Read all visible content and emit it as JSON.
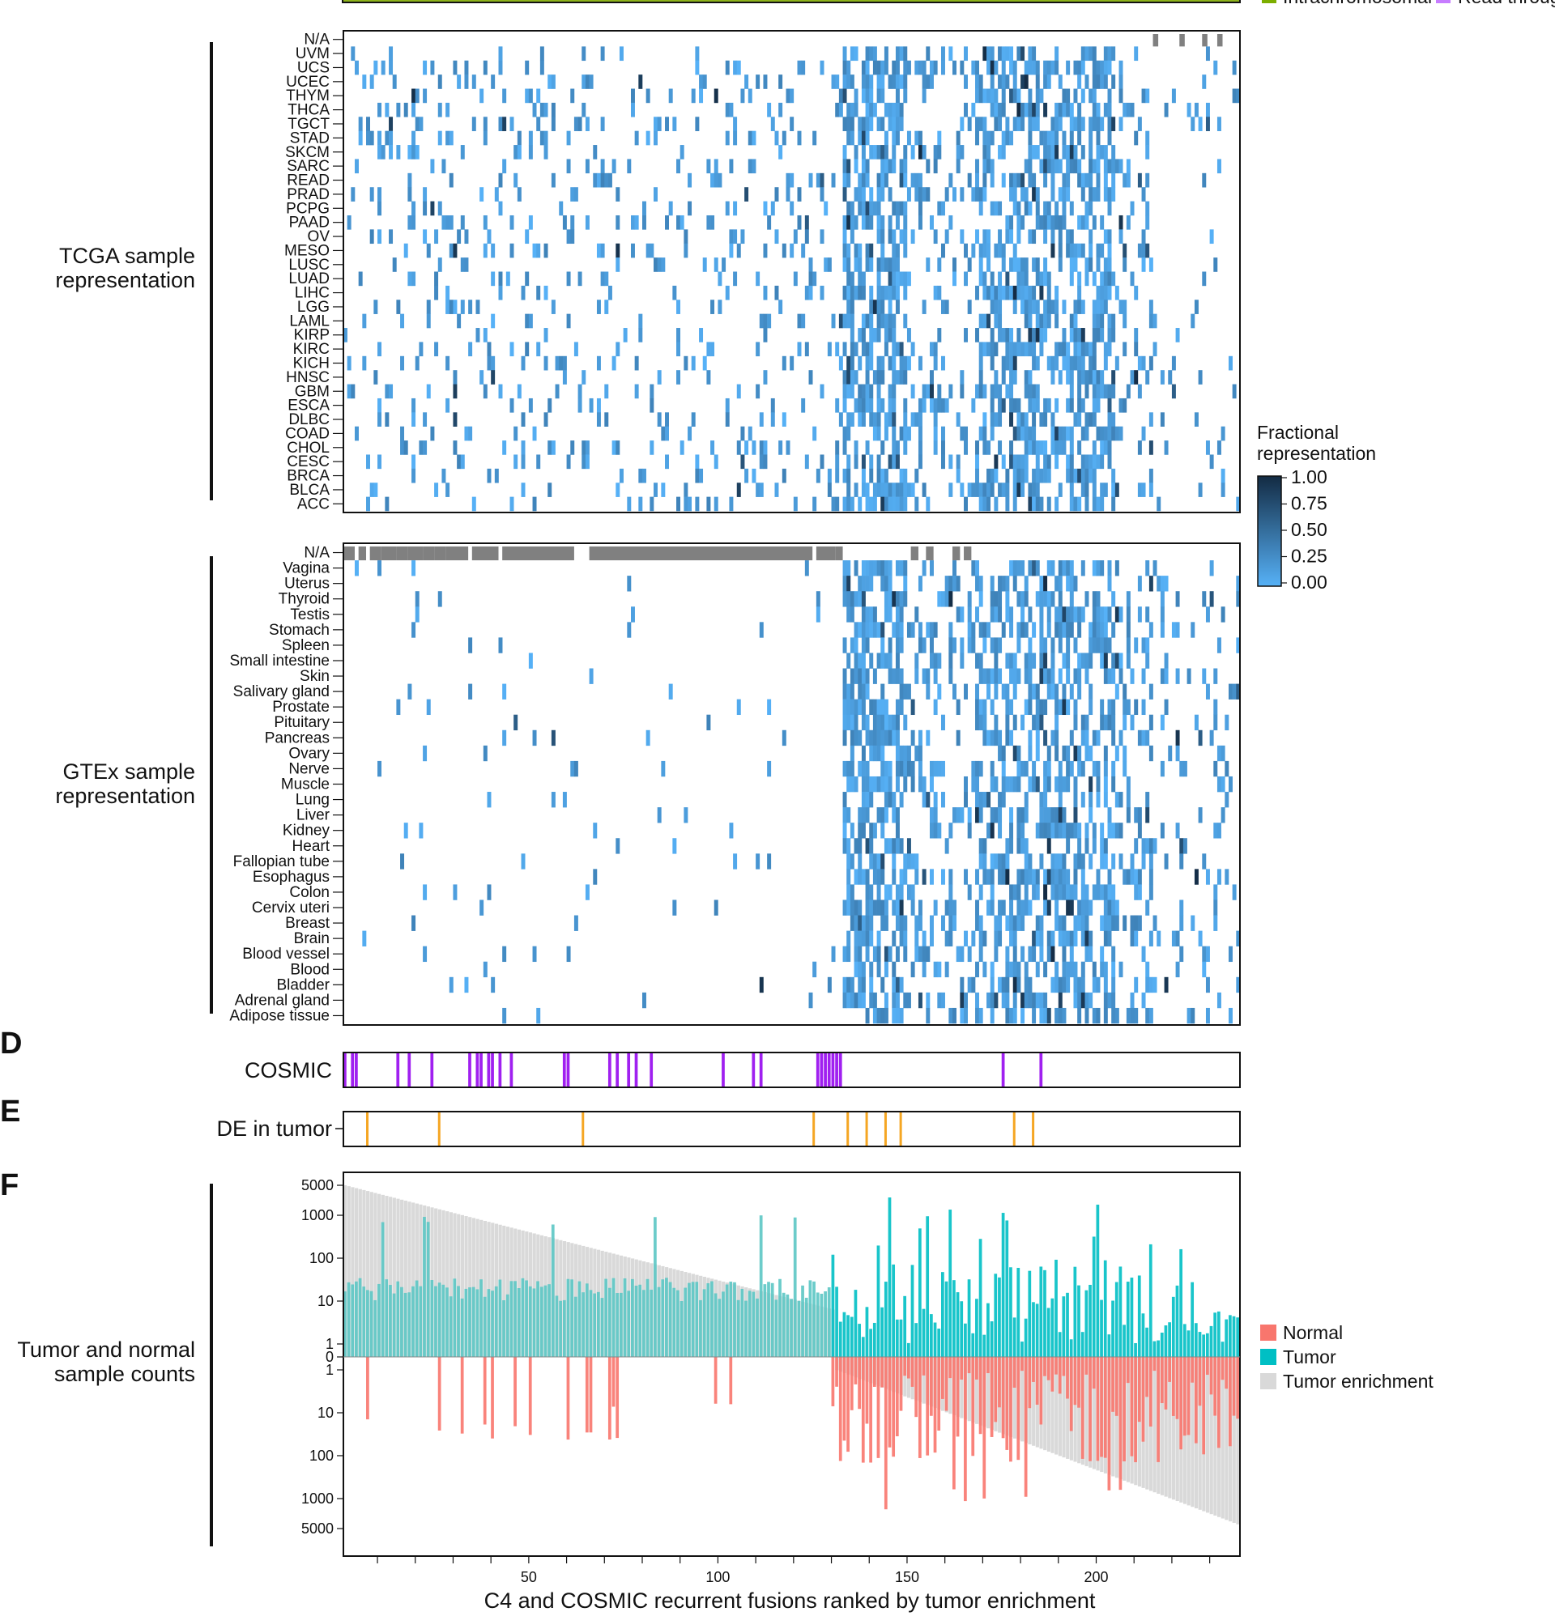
{
  "top_legend": {
    "items": [
      {
        "label": "Intrachromosomal",
        "color": "#7cae00"
      },
      {
        "label": "Read through",
        "color": "#c77cff"
      }
    ]
  },
  "panel_letters": {
    "d": "D",
    "e": "E",
    "f": "F"
  },
  "group_labels": {
    "tcga_line1": "TCGA sample",
    "tcga_line2": "representation",
    "gtex_line1": "GTEx sample",
    "gtex_line2": "representation",
    "counts_line1": "Tumor and normal",
    "counts_line2": "sample counts"
  },
  "fraction_legend": {
    "title_line1": "Fractional",
    "title_line2": "representation",
    "ticks": [
      "1.00",
      "0.75",
      "0.50",
      "0.25",
      "0.00"
    ],
    "color_low": "#56b1f7",
    "color_high": "#132b43"
  },
  "counts_legend": {
    "items": [
      {
        "label": "Normal",
        "color": "#f8766d"
      },
      {
        "label": "Tumor",
        "color": "#00bfc4"
      },
      {
        "label": "Tumor enrichment",
        "color": "#d9d9d9"
      }
    ]
  },
  "cosmic_label": "COSMIC",
  "de_label": "DE in tumor",
  "chart_data": [
    {
      "type": "heatmap",
      "name": "TCGA sample representation",
      "rows": [
        "N/A",
        "UVM",
        "UCS",
        "UCEC",
        "THYM",
        "THCA",
        "TGCT",
        "STAD",
        "SKCM",
        "SARC",
        "READ",
        "PRAD",
        "PCPG",
        "PAAD",
        "OV",
        "MESO",
        "LUSC",
        "LUAD",
        "LIHC",
        "LGG",
        "LAML",
        "KIRP",
        "KIRC",
        "KICH",
        "HNSC",
        "GBM",
        "ESCA",
        "DLBC",
        "COAD",
        "CHOL",
        "CESC",
        "BRCA",
        "BLCA",
        "ACC"
      ],
      "columns": 237,
      "value_range": [
        0,
        1
      ],
      "na_columns": [
        215,
        222,
        228,
        232
      ],
      "note_values": "cells are sparse; columns ~133-205 densely populated at low values (~0.1-0.3)"
    },
    {
      "type": "heatmap",
      "name": "GTEx sample representation",
      "rows": [
        "N/A",
        "Vagina",
        "Uterus",
        "Thyroid",
        "Testis",
        "Stomach",
        "Spleen",
        "Small intestine",
        "Skin",
        "Salivary gland",
        "Prostate",
        "Pituitary",
        "Pancreas",
        "Ovary",
        "Nerve",
        "Muscle",
        "Lung",
        "Liver",
        "Kidney",
        "Heart",
        "Fallopian tube",
        "Esophagus",
        "Colon",
        "Cervix uteri",
        "Breast",
        "Brain",
        "Blood vessel",
        "Blood",
        "Bladder",
        "Adrenal gland",
        "Adipose tissue"
      ],
      "columns": 237,
      "value_range": [
        0,
        1
      ],
      "na_column_ranges": [
        [
          1,
          3
        ],
        [
          5,
          6
        ],
        [
          8,
          10
        ],
        [
          11,
          14
        ],
        [
          15,
          17
        ],
        [
          18,
          21
        ],
        [
          22,
          24
        ],
        [
          25,
          27
        ],
        [
          28,
          33
        ],
        [
          35,
          41
        ],
        [
          43,
          61
        ],
        [
          66,
          124
        ],
        [
          126,
          130
        ],
        [
          131,
          132
        ],
        [
          151,
          152
        ],
        [
          155,
          156
        ],
        [
          162,
          163
        ],
        [
          165,
          166
        ]
      ]
    },
    {
      "type": "bar",
      "name": "COSMIC",
      "columns": 237,
      "marked_columns": [
        1,
        3,
        4,
        15,
        18,
        24,
        34,
        36,
        37,
        39,
        40,
        42,
        45,
        59,
        60,
        71,
        73,
        76,
        78,
        82,
        101,
        109,
        111,
        126,
        127,
        128,
        129,
        130,
        131,
        132,
        175,
        185
      ]
    },
    {
      "type": "bar",
      "name": "DE in tumor",
      "columns": 237,
      "marked_columns": [
        7,
        26,
        64,
        125,
        134,
        139,
        144,
        148,
        178,
        183
      ]
    },
    {
      "type": "bar",
      "name": "Tumor and normal sample counts",
      "xlabel": "C4 and COSMIC recurrent fusions ranked by tumor enrichment",
      "x_ticks": [
        50,
        100,
        150,
        200
      ],
      "y_ticks_top": [
        "5000",
        "1000",
        "100",
        "10",
        "1",
        "0"
      ],
      "y_ticks_bottom": [
        "1",
        "10",
        "100",
        "1000",
        "5000"
      ],
      "x_range": [
        1,
        237
      ],
      "y_scale": "log",
      "series": [
        {
          "name": "Tumor enrichment",
          "values": "gray envelope decreasing from ~5000 tumor-side at column 1 to ~4000 normal-side at column 237"
        },
        {
          "name": "Tumor",
          "values": "left of ~column 130: ~10-30 per fusion with spikes to ~1000; right of column 130: highly variable 1-5000"
        },
        {
          "name": "Normal",
          "values": "left of ~column 130: mostly 0 with spikes 3-30; right of column 130: highly variable 1-5000"
        }
      ]
    }
  ]
}
